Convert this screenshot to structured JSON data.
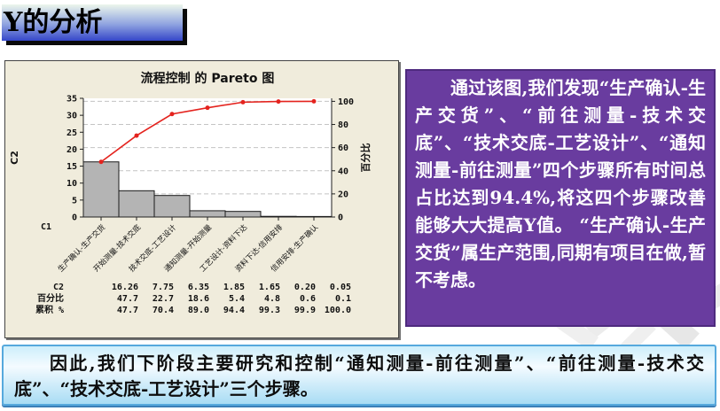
{
  "page_title": {
    "label": "Y的分析"
  },
  "chart_data": {
    "type": "bar",
    "subtype": "pareto",
    "title": "流程控制 的 Pareto 图",
    "xlabel": "C1",
    "ylabel_left": "C2",
    "ylabel_right": "百分比",
    "categories": [
      "生产确认-生产交货",
      "开始测量-技术交底",
      "技术交底-工艺设计",
      "通知测量-开始测量",
      "工艺设计-资料下达",
      "资料下达-信用安排",
      "信用安排-生产确认"
    ],
    "values": [
      16.26,
      7.75,
      6.35,
      1.85,
      1.65,
      0.2,
      0.05
    ],
    "percent": [
      47.7,
      22.7,
      18.6,
      5.4,
      4.8,
      0.6,
      0.1
    ],
    "cum_percent": [
      47.7,
      70.4,
      89.0,
      94.4,
      99.3,
      99.9,
      100.0
    ],
    "ylim_left": [
      0,
      35
    ],
    "ylim_right": [
      0,
      100
    ],
    "yticks_left": [
      0,
      5,
      10,
      15,
      20,
      25,
      30,
      35
    ],
    "yticks_right": [
      0,
      20,
      40,
      60,
      80,
      100
    ],
    "grid": "dashed horizontal at right-axis ticks",
    "legend": "none",
    "table_rows": [
      {
        "label": "C2",
        "values": [
          "16.26",
          "7.75",
          "6.35",
          "1.85",
          "1.65",
          "0.20",
          "0.05"
        ]
      },
      {
        "label": "百分比",
        "values": [
          "47.7",
          "22.7",
          "18.6",
          "5.4",
          "4.8",
          "0.6",
          "0.1"
        ]
      },
      {
        "label": "累积 %",
        "values": [
          "47.7",
          "70.4",
          "89.0",
          "94.4",
          "99.3",
          "99.9",
          "100.0"
        ]
      }
    ],
    "colors": {
      "bar": "#b4b4b4",
      "bar_border": "#1a1a1a",
      "line": "#e4231e",
      "figure_bg": "#f0ecdc",
      "plot_bg": "#ffffff",
      "gridline": "#c4c4c4"
    }
  },
  "analysis_box": {
    "text": "通过该图,我们发现“生产确认-生产交货”、“前往测量-技术交底”、“技术交底-工艺设计”、“通知测量-前往测量”四个步骤所有时间总占比达到94.4%,将这四个步骤改善能够大大提高Y值。 “生产确认-生产交货”属生产范围,同期有项目在做,暂不考虑。",
    "bg": "#693c9f",
    "text_color": "#ffffff"
  },
  "conclusion_box": {
    "text": "因此,我们下阶段主要研究和控制“通知测量-前往测量”、“前往测量-技术交底”、“技术交底-工艺设计”三个步骤。",
    "border_color": "#56a9dd"
  }
}
